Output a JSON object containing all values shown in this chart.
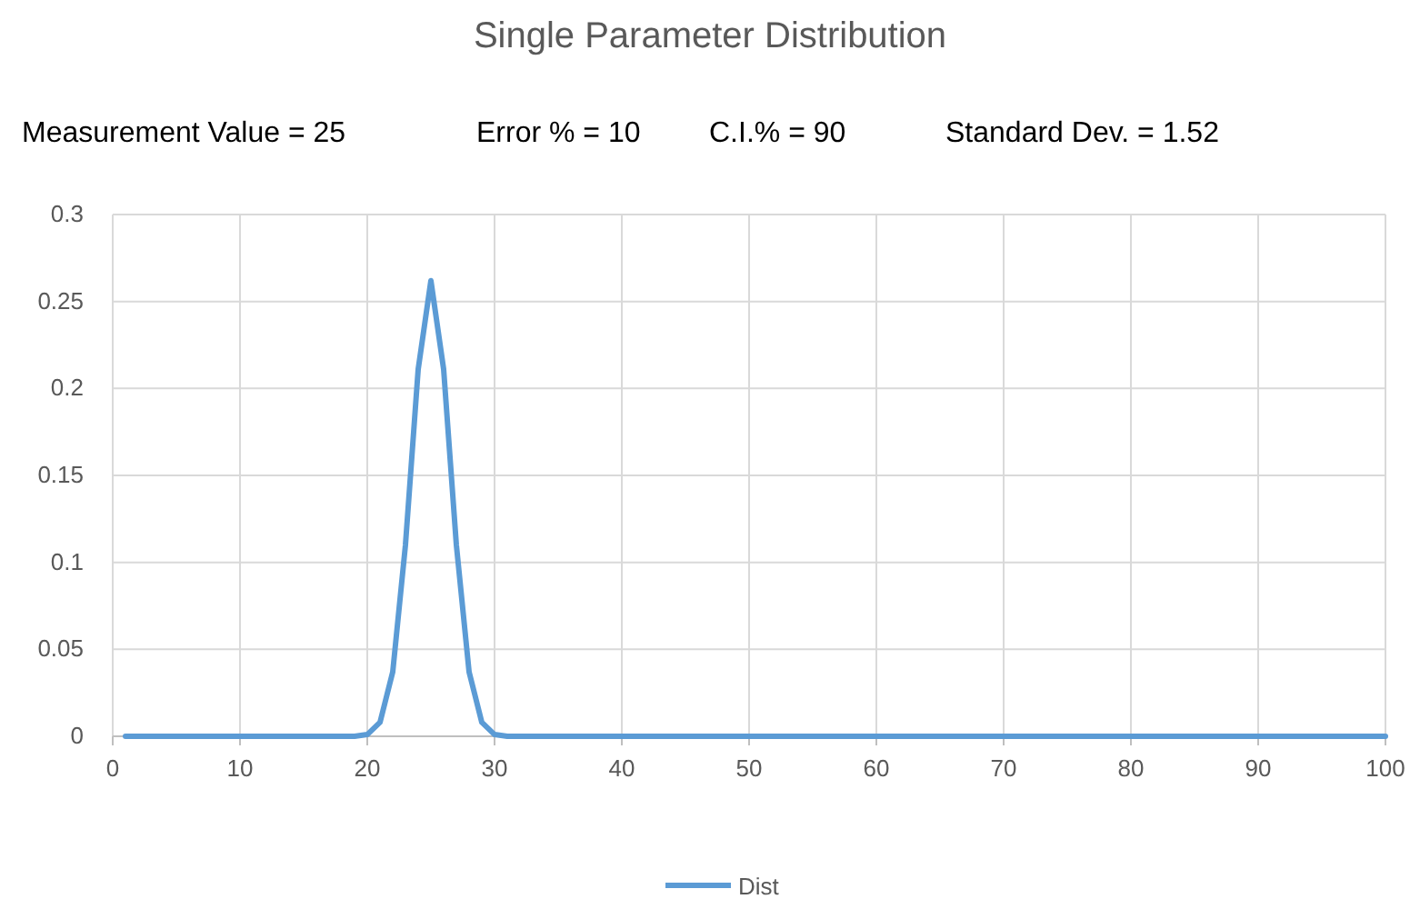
{
  "chart_data": {
    "type": "line",
    "title": "Single Parameter Distribution",
    "annotations": [
      "Measurement Value = 25",
      "Error % = 10",
      "C.I.% = 90",
      "Standard Dev. = 1.52"
    ],
    "x": [
      1,
      19,
      20,
      21,
      22,
      23,
      24,
      25,
      26,
      27,
      28,
      29,
      30,
      31,
      100
    ],
    "series": [
      {
        "name": "Dist",
        "color": "#5b9bd5",
        "values": [
          0,
          0,
          0.001,
          0.008,
          0.037,
          0.11,
          0.211,
          0.262,
          0.211,
          0.11,
          0.037,
          0.008,
          0.001,
          0,
          0
        ]
      }
    ],
    "xlim": [
      0,
      100
    ],
    "xticks": [
      0,
      10,
      20,
      30,
      40,
      50,
      60,
      70,
      80,
      90,
      100
    ],
    "ylim": [
      0,
      0.3
    ],
    "yticks": [
      0,
      0.05,
      0.1,
      0.15,
      0.2,
      0.25,
      0.3
    ],
    "grid": true,
    "legend": "bottom",
    "marker": "none",
    "line_style": "solid"
  }
}
